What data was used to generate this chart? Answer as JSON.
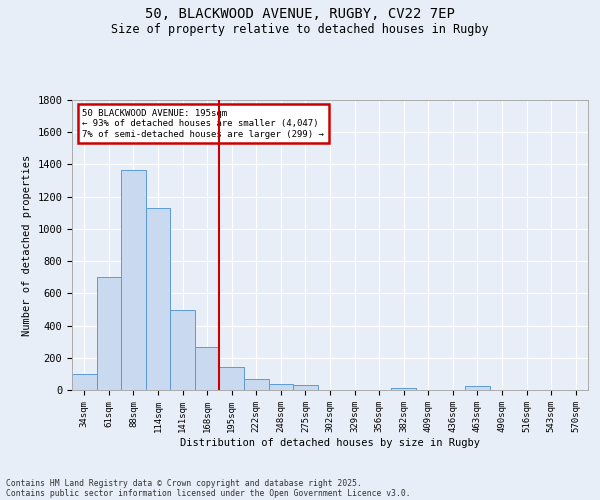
{
  "title_line1": "50, BLACKWOOD AVENUE, RUGBY, CV22 7EP",
  "title_line2": "Size of property relative to detached houses in Rugby",
  "xlabel": "Distribution of detached houses by size in Rugby",
  "ylabel": "Number of detached properties",
  "footnote1": "Contains HM Land Registry data © Crown copyright and database right 2025.",
  "footnote2": "Contains public sector information licensed under the Open Government Licence v3.0.",
  "annotation_line1": "50 BLACKWOOD AVENUE: 195sqm",
  "annotation_line2": "← 93% of detached houses are smaller (4,047)",
  "annotation_line3": "7% of semi-detached houses are larger (299) →",
  "categories": [
    "34sqm",
    "61sqm",
    "88sqm",
    "114sqm",
    "141sqm",
    "168sqm",
    "195sqm",
    "222sqm",
    "248sqm",
    "275sqm",
    "302sqm",
    "329sqm",
    "356sqm",
    "382sqm",
    "409sqm",
    "436sqm",
    "463sqm",
    "490sqm",
    "516sqm",
    "543sqm",
    "570sqm"
  ],
  "values": [
    97,
    700,
    1365,
    1130,
    495,
    270,
    140,
    68,
    36,
    32,
    0,
    0,
    0,
    15,
    0,
    0,
    22,
    0,
    0,
    0,
    0
  ],
  "bar_color": "#c9d9f0",
  "bar_edge_color": "#5b9bd5",
  "vline_color": "#cc0000",
  "annotation_box_color": "#cc0000",
  "background_color": "#e8eef8",
  "grid_color": "#ffffff",
  "ylim": [
    0,
    1800
  ],
  "yticks": [
    0,
    200,
    400,
    600,
    800,
    1000,
    1200,
    1400,
    1600,
    1800
  ]
}
